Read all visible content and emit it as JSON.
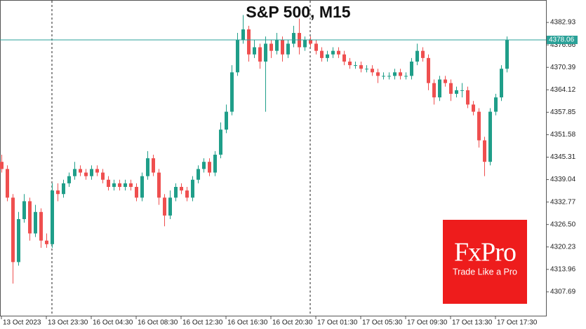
{
  "chart_data": {
    "type": "candlestick",
    "title": "S&P 500, M15",
    "categories": [
      "13 Oct 2023",
      null,
      null,
      null,
      null,
      null,
      null,
      null,
      "13 Oct 23:30",
      null,
      null,
      null,
      null,
      null,
      null,
      null,
      "16 Oct 04:30",
      null,
      null,
      null,
      null,
      null,
      null,
      null,
      "16 Oct 08:30",
      null,
      null,
      null,
      null,
      null,
      null,
      null,
      "16 Oct 12:30",
      null,
      null,
      null,
      null,
      null,
      null,
      null,
      "16 Oct 16:30",
      null,
      null,
      null,
      null,
      null,
      null,
      null,
      "16 Oct 20:30",
      null,
      null,
      null,
      null,
      null,
      null,
      null,
      "17 Oct 01:30",
      null,
      null,
      null,
      null,
      null,
      null,
      null,
      "17 Oct 05:30",
      null,
      null,
      null,
      null,
      null,
      null,
      null,
      "17 Oct 09:30",
      null,
      null,
      null,
      null,
      null,
      null,
      null,
      "17 Oct 13:30",
      null,
      null,
      null,
      null,
      null,
      null,
      null,
      "17 Oct 17:30",
      null,
      null
    ],
    "open": [
      4344,
      4342,
      4334,
      4316,
      4328,
      4333,
      4324,
      4330,
      4322,
      4321,
      4336,
      4335,
      4338,
      4340,
      4342,
      4341,
      4340,
      4342,
      4341,
      4339,
      4337,
      4338,
      4337,
      4338,
      4337,
      4334,
      4340,
      4345,
      4341,
      4334,
      4329,
      4334,
      4337,
      4336,
      4334,
      4339,
      4342,
      4344,
      4341,
      4346,
      4353,
      4358,
      4369,
      4378,
      4381,
      4374,
      4376,
      4372,
      4377,
      4375,
      4378,
      4374,
      4377,
      4380,
      4376,
      4378,
      4377,
      4375,
      4373,
      4374,
      4375,
      4374,
      4372,
      4371,
      4371,
      4370,
      4370,
      4369,
      4368,
      4368,
      4368,
      4369,
      4368,
      4368,
      4372,
      4375,
      4373,
      4366,
      4362,
      4367,
      4366,
      4363,
      4364,
      4364,
      4360,
      4358,
      4350,
      4344,
      4358,
      4362,
      4370
    ],
    "high": [
      4346,
      4343,
      4335,
      4330,
      4335,
      4334,
      4332,
      4331,
      4324,
      4338,
      4338,
      4339,
      4341,
      4344,
      4343,
      4342,
      4343,
      4343,
      4342,
      4340,
      4339,
      4339,
      4339,
      4339,
      4338,
      4341,
      4347,
      4346,
      4342,
      4335,
      4336,
      4338,
      4338,
      4337,
      4340,
      4343,
      4345,
      4345,
      4347,
      4355,
      4360,
      4371,
      4380,
      4385,
      4382,
      4378,
      4377,
      4379,
      4378,
      4380,
      4379,
      4378,
      4382,
      4384,
      4379,
      4379,
      4378,
      4376,
      4375,
      4376,
      4376,
      4375,
      4373,
      4372,
      4372,
      4371,
      4371,
      4370,
      4369,
      4369,
      4370,
      4370,
      4369,
      4373,
      4377,
      4376,
      4374,
      4367,
      4368,
      4368,
      4367,
      4365,
      4366,
      4365,
      4361,
      4359,
      4351,
      4359,
      4363,
      4371,
      4379
    ],
    "low": [
      4341,
      4333,
      4310,
      4315,
      4327,
      4322,
      4323,
      4320,
      4320,
      4320,
      4333,
      4334,
      4337,
      4339,
      4340,
      4339,
      4339,
      4340,
      4338,
      4336,
      4336,
      4336,
      4336,
      4336,
      4333,
      4333,
      4339,
      4340,
      4332,
      4326,
      4328,
      4333,
      4335,
      4333,
      4333,
      4338,
      4341,
      4340,
      4340,
      4345,
      4352,
      4357,
      4368,
      4377,
      4372,
      4373,
      4370,
      4358,
      4373,
      4374,
      4372,
      4373,
      4376,
      4374,
      4375,
      4376,
      4374,
      4372,
      4372,
      4373,
      4373,
      4371,
      4370,
      4370,
      4369,
      4369,
      4368,
      4366,
      4367,
      4367,
      4367,
      4367,
      4367,
      4367,
      4371,
      4372,
      4364,
      4360,
      4361,
      4365,
      4361,
      4362,
      4362,
      4359,
      4357,
      4348,
      4340,
      4343,
      4357,
      4361,
      4369
    ],
    "close": [
      4342,
      4334,
      4316,
      4328,
      4333,
      4324,
      4330,
      4322,
      4321,
      4336,
      4335,
      4338,
      4340,
      4342,
      4341,
      4340,
      4342,
      4341,
      4339,
      4337,
      4338,
      4337,
      4338,
      4337,
      4334,
      4340,
      4345,
      4341,
      4334,
      4329,
      4334,
      4337,
      4336,
      4334,
      4339,
      4342,
      4344,
      4341,
      4346,
      4353,
      4358,
      4369,
      4378,
      4381,
      4374,
      4376,
      4372,
      4377,
      4375,
      4378,
      4374,
      4377,
      4380,
      4376,
      4378,
      4377,
      4375,
      4373,
      4374,
      4375,
      4374,
      4372,
      4371,
      4371,
      4370,
      4370,
      4369,
      4368,
      4368,
      4368,
      4369,
      4368,
      4368,
      4372,
      4375,
      4373,
      4366,
      4362,
      4367,
      4366,
      4363,
      4364,
      4364,
      4360,
      4358,
      4350,
      4344,
      4358,
      4362,
      4370,
      4378.06
    ],
    "up_color": "#1f9e89",
    "down_color": "#ef4f4f",
    "ylim": [
      4300.83,
      4389.2
    ],
    "yticks": [
      4382.93,
      4376.66,
      4370.39,
      4364.12,
      4357.85,
      4351.58,
      4345.31,
      4339.04,
      4332.77,
      {
        "value": 4326.5,
        "label": "4326.50"
      },
      4320.23,
      4313.96,
      4307.69
    ],
    "current_price": 4378.06,
    "current_price_color": "#2aa198",
    "watermark": {
      "brand": "FxPro",
      "tagline": "Trade Like a Pro",
      "color": "#ee1c1c"
    }
  }
}
